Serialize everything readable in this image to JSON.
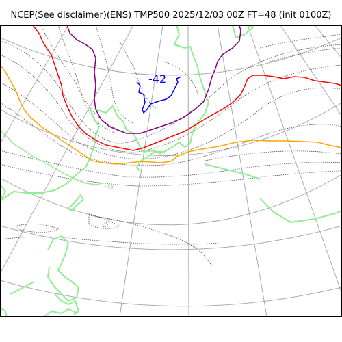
{
  "title": "NCEP(See disclaimer)(ENS) TMP500 2025/12/03 00Z FT=48 (init 0100Z)",
  "labels": {
    "cold_center": "-42",
    "isotherm_green": "-6"
  },
  "colors": {
    "grid": "#aaaaaa",
    "coast": "#90ee90",
    "contour": "#555555",
    "isotherm_blue": "#0000ff",
    "isotherm_purple": "#800080",
    "isotherm_red": "#ff0000",
    "isotherm_orange": "#ffa500",
    "isotherm_green": "#90ee90"
  }
}
